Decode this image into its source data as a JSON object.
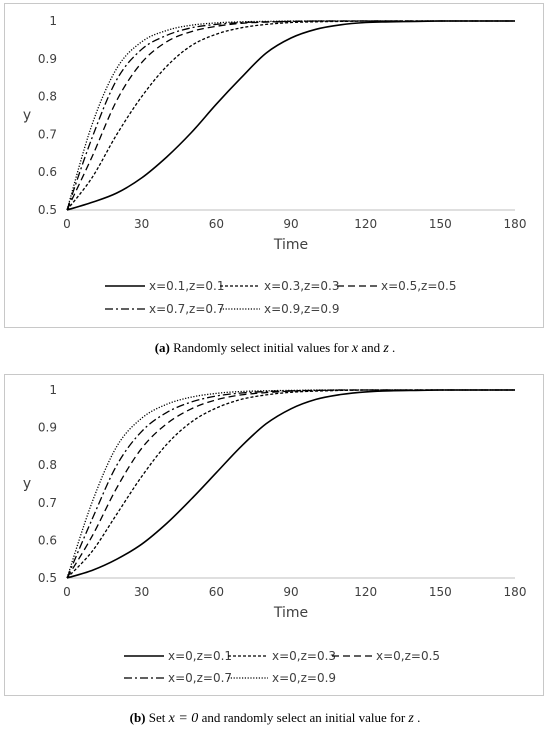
{
  "chart_data": [
    {
      "type": "line",
      "xlabel": "Time",
      "ylabel": "y",
      "xlim": [
        0,
        180
      ],
      "ylim": [
        0.5,
        1
      ],
      "x_ticks": [
        "0",
        "30",
        "60",
        "90",
        "120",
        "150",
        "180"
      ],
      "y_ticks": [
        "0.5",
        "0.6",
        "0.7",
        "0.8",
        "0.9",
        "1"
      ],
      "grid": false,
      "legend_position": "bottom",
      "x": [
        0,
        10,
        20,
        30,
        40,
        50,
        60,
        70,
        80,
        90,
        100,
        110,
        120,
        130,
        140,
        150,
        160,
        170,
        180
      ],
      "series": [
        {
          "name": "x=0.1,z=0.1",
          "dash": "solid",
          "values": [
            0.5,
            0.52,
            0.545,
            0.585,
            0.64,
            0.705,
            0.78,
            0.85,
            0.915,
            0.955,
            0.978,
            0.99,
            0.996,
            0.998,
            0.999,
            1.0,
            1.0,
            1.0,
            1.0
          ]
        },
        {
          "name": "x=0.3,z=0.3",
          "dash": "short",
          "values": [
            0.5,
            0.585,
            0.7,
            0.8,
            0.88,
            0.935,
            0.965,
            0.982,
            0.991,
            0.996,
            0.998,
            0.999,
            1.0,
            1.0,
            1.0,
            1.0,
            1.0,
            1.0,
            1.0
          ]
        },
        {
          "name": "x=0.5,z=0.5",
          "dash": "long",
          "values": [
            0.5,
            0.64,
            0.79,
            0.89,
            0.945,
            0.972,
            0.986,
            0.994,
            0.997,
            0.999,
            1.0,
            1.0,
            1.0,
            1.0,
            1.0,
            1.0,
            1.0,
            1.0,
            1.0
          ]
        },
        {
          "name": "x=0.7,z=0.7",
          "dash": "dashdot",
          "values": [
            0.5,
            0.69,
            0.845,
            0.925,
            0.962,
            0.982,
            0.991,
            0.996,
            0.998,
            0.999,
            1.0,
            1.0,
            1.0,
            1.0,
            1.0,
            1.0,
            1.0,
            1.0,
            1.0
          ]
        },
        {
          "name": "x=0.9,z=0.9",
          "dash": "dot",
          "values": [
            0.5,
            0.725,
            0.875,
            0.945,
            0.975,
            0.989,
            0.995,
            0.998,
            0.999,
            1.0,
            1.0,
            1.0,
            1.0,
            1.0,
            1.0,
            1.0,
            1.0,
            1.0,
            1.0
          ]
        }
      ]
    },
    {
      "type": "line",
      "xlabel": "Time",
      "ylabel": "y",
      "xlim": [
        0,
        180
      ],
      "ylim": [
        0.5,
        1
      ],
      "x_ticks": [
        "0",
        "30",
        "60",
        "90",
        "120",
        "150",
        "180"
      ],
      "y_ticks": [
        "0.5",
        "0.6",
        "0.7",
        "0.8",
        "0.9",
        "1"
      ],
      "grid": false,
      "legend_position": "bottom",
      "x": [
        0,
        10,
        20,
        30,
        40,
        50,
        60,
        70,
        80,
        90,
        100,
        110,
        120,
        130,
        140,
        150,
        160,
        170,
        180
      ],
      "series": [
        {
          "name": "x=0,z=0.1",
          "dash": "solid",
          "values": [
            0.5,
            0.52,
            0.55,
            0.59,
            0.645,
            0.71,
            0.78,
            0.85,
            0.91,
            0.95,
            0.975,
            0.988,
            0.995,
            0.998,
            0.999,
            1.0,
            1.0,
            1.0,
            1.0
          ]
        },
        {
          "name": "x=0,z=0.3",
          "dash": "short",
          "values": [
            0.5,
            0.57,
            0.67,
            0.77,
            0.855,
            0.915,
            0.952,
            0.975,
            0.987,
            0.994,
            0.997,
            0.999,
            1.0,
            1.0,
            1.0,
            1.0,
            1.0,
            1.0,
            1.0
          ]
        },
        {
          "name": "x=0,z=0.5",
          "dash": "long",
          "values": [
            0.5,
            0.61,
            0.74,
            0.845,
            0.91,
            0.95,
            0.974,
            0.987,
            0.993,
            0.997,
            0.999,
            1.0,
            1.0,
            1.0,
            1.0,
            1.0,
            1.0,
            1.0,
            1.0
          ]
        },
        {
          "name": "x=0,z=0.7",
          "dash": "dashdot",
          "values": [
            0.5,
            0.655,
            0.8,
            0.89,
            0.94,
            0.968,
            0.984,
            0.992,
            0.996,
            0.998,
            0.999,
            1.0,
            1.0,
            1.0,
            1.0,
            1.0,
            1.0,
            1.0,
            1.0
          ]
        },
        {
          "name": "x=0,z=0.9",
          "dash": "dot",
          "values": [
            0.5,
            0.7,
            0.85,
            0.925,
            0.962,
            0.981,
            0.991,
            0.996,
            0.998,
            0.999,
            1.0,
            1.0,
            1.0,
            1.0,
            1.0,
            1.0,
            1.0,
            1.0,
            1.0
          ]
        }
      ]
    }
  ],
  "captions": [
    {
      "label": "(a)",
      "prefix": " Randomly select initial values for ",
      "var1": "x",
      "mid": " and ",
      "var2": "z",
      "suffix": "."
    },
    {
      "label": "(b)",
      "prefix": " Set ",
      "expr": "x = 0",
      "mid": " and randomly select an initial value for ",
      "var2": "z",
      "suffix": "."
    }
  ],
  "colors": {
    "line": "#000000",
    "text": "#404040",
    "axis": "#bfbfbf",
    "border": "#c8c8c8"
  }
}
